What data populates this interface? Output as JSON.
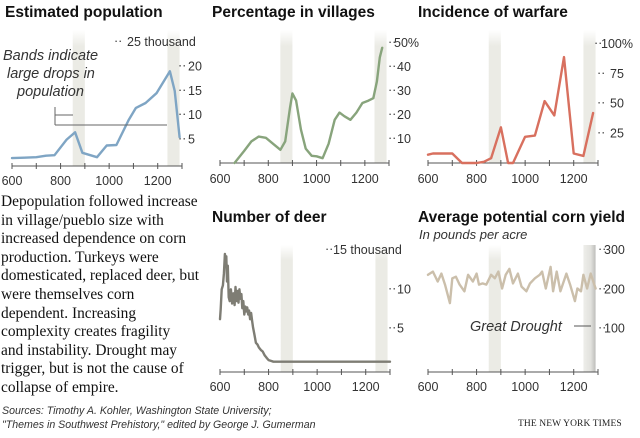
{
  "colors": {
    "population": "#7fa5c4",
    "villages": "#88a47c",
    "warfare": "#d8705f",
    "deer": "#7e7d74",
    "corn": "#cbbfab",
    "band": "#ebebe5",
    "axis": "#555555"
  },
  "annotation": {
    "bands_text": [
      "Bands indicate",
      "large drops in",
      "population"
    ],
    "great_drought": "Great Drought"
  },
  "paragraph": [
    "Depopulation followed increase",
    "in village/pueblo size with",
    "increased dependence on corn",
    "production. Turkeys were",
    "domesticated, replaced deer, but",
    "were themselves corn",
    "dependent. Increasing",
    "complexity creates fragility",
    "and instability. Drought may",
    "trigger, but is not the cause of",
    "collapse of empire."
  ],
  "footer": {
    "sources_line1": "Sources: Timothy A. Kohler, Washington State University;",
    "sources_line2": "\"Themes in Southwest Prehistory,\" edited by George J. Gumerman",
    "credit": "THE NEW YORK TIMES"
  },
  "chart_data": [
    {
      "id": "population",
      "type": "line",
      "title": "Estimated population",
      "xlim": [
        600,
        1300
      ],
      "ylim": [
        0,
        25
      ],
      "x_ticks": [
        600,
        700,
        800,
        900,
        1000,
        1100,
        1200,
        1300
      ],
      "x_tick_labels": [
        "600",
        "800",
        "1000",
        "1200"
      ],
      "y_ticks": [
        5,
        10,
        15,
        20,
        25
      ],
      "y_tick_labels": [
        "5",
        "10",
        "15",
        "20",
        "25 thousand"
      ],
      "bands": [
        [
          850,
          900
        ],
        [
          1240,
          1290
        ]
      ],
      "x": [
        600,
        650,
        700,
        740,
        775,
        825,
        860,
        890,
        950,
        990,
        1030,
        1080,
        1110,
        1150,
        1195,
        1250,
        1270,
        1290
      ],
      "y": [
        1.2,
        1.3,
        1.4,
        1.7,
        1.8,
        5.0,
        6.5,
        2.3,
        1.4,
        3.8,
        3.9,
        9.0,
        11.5,
        12.5,
        14.5,
        19.0,
        15.0,
        5.5
      ]
    },
    {
      "id": "villages",
      "type": "line",
      "title": "Percentage in villages",
      "xlim": [
        600,
        1300
      ],
      "ylim": [
        0,
        50
      ],
      "x_ticks": [
        600,
        700,
        800,
        900,
        1000,
        1100,
        1200,
        1300
      ],
      "x_tick_labels": [
        "600",
        "800",
        "1000",
        "1200"
      ],
      "y_ticks": [
        10,
        20,
        30,
        40,
        50
      ],
      "y_tick_labels": [
        "10",
        "20",
        "30",
        "40",
        "50%"
      ],
      "bands": [
        [
          850,
          900
        ],
        [
          1240,
          1290
        ]
      ],
      "x": [
        660,
        700,
        730,
        760,
        790,
        820,
        850,
        870,
        890,
        900,
        915,
        935,
        955,
        980,
        1000,
        1025,
        1050,
        1075,
        1095,
        1115,
        1140,
        1165,
        1190,
        1215,
        1235,
        1250,
        1262,
        1272
      ],
      "y": [
        0,
        5,
        9,
        11,
        10.5,
        8,
        5.5,
        9,
        23,
        29,
        26,
        14,
        6,
        3,
        2.8,
        2,
        8,
        18,
        21,
        19.5,
        18,
        21,
        25,
        26,
        27,
        34,
        44,
        48
      ]
    },
    {
      "id": "warfare",
      "type": "line",
      "title": "Incidence of warfare",
      "xlim": [
        600,
        1300
      ],
      "ylim": [
        0,
        100
      ],
      "x_ticks": [
        600,
        700,
        800,
        900,
        1000,
        1100,
        1200,
        1300
      ],
      "x_tick_labels": [
        "600",
        "800",
        "1000",
        "1200"
      ],
      "y_ticks": [
        25,
        50,
        75,
        100
      ],
      "y_tick_labels": [
        "25",
        "50",
        "75",
        "100%"
      ],
      "bands": [
        [
          850,
          900
        ],
        [
          1240,
          1290
        ]
      ],
      "x": [
        600,
        620,
        700,
        740,
        800,
        830,
        860,
        900,
        930,
        950,
        1000,
        1040,
        1080,
        1120,
        1160,
        1200,
        1240,
        1280
      ],
      "y": [
        7,
        8,
        8,
        0,
        0,
        1,
        4,
        30,
        0,
        0,
        22,
        23,
        52,
        40,
        89,
        8,
        6,
        42
      ]
    },
    {
      "id": "deer",
      "type": "line",
      "title": "Number of deer",
      "xlim": [
        600,
        1300
      ],
      "ylim": [
        0,
        15
      ],
      "x_ticks": [
        600,
        700,
        800,
        900,
        1000,
        1100,
        1200,
        1300
      ],
      "x_tick_labels": [
        "600",
        "800",
        "1000",
        "1200"
      ],
      "y_ticks": [
        5,
        10,
        15
      ],
      "y_tick_labels": [
        "5",
        "10",
        "15 thousand"
      ],
      "bands": [
        [
          850,
          900
        ],
        [
          1240,
          1290
        ]
      ],
      "x": [
        600,
        603,
        607,
        612,
        616,
        620,
        623,
        626,
        629,
        632,
        636,
        640,
        645,
        650,
        655,
        660,
        664,
        668,
        672,
        676,
        680,
        684,
        688,
        692,
        696,
        700,
        704,
        708,
        712,
        716,
        720,
        724,
        728,
        732,
        736,
        742,
        748,
        754,
        760,
        768,
        776,
        784,
        792,
        800,
        810,
        820,
        850,
        900,
        1000,
        1100,
        1200,
        1300
      ],
      "y": [
        6.2,
        7.5,
        10,
        10.5,
        12,
        14.5,
        13.5,
        14.2,
        11,
        13,
        9,
        8.5,
        10,
        8.2,
        9.5,
        8,
        10.3,
        8.5,
        9.8,
        8.3,
        10,
        8.8,
        9.4,
        7.6,
        8.5,
        6.8,
        7.8,
        7.2,
        7.7,
        6.8,
        7.3,
        6.2,
        7,
        6,
        5.2,
        4.2,
        3.2,
        3,
        2.6,
        2.3,
        2.1,
        1.6,
        1.3,
        1,
        0.9,
        0.8,
        0.8,
        0.8,
        0.8,
        0.8,
        0.8,
        0.8
      ]
    },
    {
      "id": "corn",
      "type": "line",
      "title": "Average potential corn yield",
      "subtitle": "In pounds per acre",
      "xlim": [
        600,
        1300
      ],
      "ylim": [
        0,
        300
      ],
      "x_ticks": [
        600,
        700,
        800,
        900,
        1000,
        1100,
        1200,
        1300
      ],
      "x_tick_labels": [
        "600",
        "800",
        "1000",
        "1200"
      ],
      "y_ticks": [
        100,
        200,
        300
      ],
      "y_tick_labels": [
        "100",
        "200",
        "300"
      ],
      "bands": [
        [
          850,
          900
        ],
        [
          1240,
          1290
        ]
      ],
      "x": [
        600,
        620,
        640,
        655,
        670,
        690,
        700,
        715,
        730,
        750,
        765,
        785,
        800,
        810,
        825,
        840,
        860,
        875,
        890,
        905,
        920,
        935,
        950,
        970,
        985,
        1005,
        1020,
        1040,
        1060,
        1070,
        1085,
        1105,
        1115,
        1130,
        1145,
        1170,
        1185,
        1205,
        1215,
        1230,
        1240,
        1255,
        1270,
        1290
      ],
      "y": [
        237,
        245,
        220,
        240,
        212,
        165,
        228,
        232,
        212,
        195,
        237,
        220,
        240,
        212,
        215,
        212,
        237,
        228,
        245,
        202,
        237,
        252,
        215,
        240,
        207,
        195,
        215,
        228,
        237,
        245,
        202,
        257,
        195,
        245,
        195,
        240,
        212,
        170,
        202,
        195,
        237,
        202,
        240,
        202
      ]
    }
  ]
}
